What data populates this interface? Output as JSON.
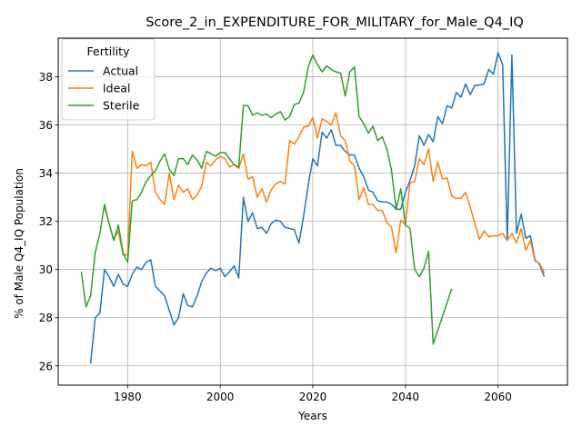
{
  "chart_data": {
    "type": "line",
    "title": "Score_2_in_EXPENDITURE_FOR_MILITARY_for_Male_Q4_IQ",
    "xlabel": "Years",
    "ylabel": "% of Male Q4_IQ Population",
    "xlim": [
      1965,
      2075
    ],
    "ylim": [
      25.2,
      39.6
    ],
    "xticks": [
      1980,
      2000,
      2020,
      2040,
      2060
    ],
    "yticks": [
      26,
      28,
      30,
      32,
      34,
      36,
      38
    ],
    "grid": true,
    "legend": {
      "title": "Fertility",
      "placement": "top-left"
    },
    "series": [
      {
        "name": "Actual",
        "color": "#1f77b4",
        "points": [
          [
            1972,
            26.1
          ],
          [
            1973,
            28.0
          ],
          [
            1974,
            28.2
          ],
          [
            1975,
            30.0
          ],
          [
            1976,
            29.7
          ],
          [
            1977,
            29.3
          ],
          [
            1978,
            29.8
          ],
          [
            1979,
            29.4
          ],
          [
            1980,
            29.3
          ],
          [
            1981,
            29.8
          ],
          [
            1982,
            30.1
          ],
          [
            1983,
            30.0
          ],
          [
            1984,
            30.3
          ],
          [
            1985,
            30.4
          ],
          [
            1986,
            29.3
          ],
          [
            1987,
            29.1
          ],
          [
            1988,
            28.9
          ],
          [
            1989,
            28.3
          ],
          [
            1990,
            27.7
          ],
          [
            1991,
            28.0
          ],
          [
            1992,
            29.0
          ],
          [
            1993,
            28.5
          ],
          [
            1994,
            28.45
          ],
          [
            1995,
            28.9
          ],
          [
            1996,
            29.5
          ],
          [
            1997,
            29.85
          ],
          [
            1998,
            30.05
          ],
          [
            1999,
            29.95
          ],
          [
            2000,
            30.05
          ],
          [
            2001,
            29.7
          ],
          [
            2002,
            29.9
          ],
          [
            2003,
            30.15
          ],
          [
            2004,
            29.65
          ],
          [
            2005,
            33.0
          ],
          [
            2006,
            32.0
          ],
          [
            2007,
            32.35
          ],
          [
            2008,
            31.7
          ],
          [
            2009,
            31.75
          ],
          [
            2010,
            31.5
          ],
          [
            2011,
            31.9
          ],
          [
            2012,
            32.05
          ],
          [
            2013,
            32.0
          ],
          [
            2014,
            31.75
          ],
          [
            2015,
            31.7
          ],
          [
            2016,
            31.65
          ],
          [
            2017,
            31.1
          ],
          [
            2018,
            32.2
          ],
          [
            2019,
            33.5
          ],
          [
            2020,
            34.6
          ],
          [
            2021,
            34.3
          ],
          [
            2022,
            35.7
          ],
          [
            2023,
            35.45
          ],
          [
            2024,
            35.8
          ],
          [
            2025,
            35.15
          ],
          [
            2026,
            35.15
          ],
          [
            2027,
            34.9
          ],
          [
            2028,
            34.75
          ],
          [
            2029,
            34.75
          ],
          [
            2030,
            34.2
          ],
          [
            2031,
            33.85
          ],
          [
            2032,
            33.3
          ],
          [
            2033,
            33.2
          ],
          [
            2034,
            32.85
          ],
          [
            2035,
            32.8
          ],
          [
            2036,
            32.8
          ],
          [
            2037,
            32.7
          ],
          [
            2038,
            32.5
          ],
          [
            2039,
            32.5
          ],
          [
            2040,
            33.2
          ],
          [
            2041,
            33.7
          ],
          [
            2042,
            34.3
          ],
          [
            2043,
            35.55
          ],
          [
            2044,
            35.15
          ],
          [
            2045,
            35.6
          ],
          [
            2046,
            35.3
          ],
          [
            2047,
            36.35
          ],
          [
            2048,
            36.05
          ],
          [
            2049,
            36.8
          ],
          [
            2050,
            36.7
          ],
          [
            2051,
            37.35
          ],
          [
            2052,
            37.15
          ],
          [
            2053,
            37.7
          ],
          [
            2054,
            37.25
          ],
          [
            2055,
            37.65
          ],
          [
            2056,
            37.65
          ],
          [
            2057,
            37.7
          ],
          [
            2058,
            38.3
          ],
          [
            2059,
            38.1
          ],
          [
            2060,
            39.0
          ],
          [
            2061,
            38.5
          ],
          [
            2062,
            31.2
          ],
          [
            2063,
            38.9
          ],
          [
            2064,
            31.5
          ],
          [
            2065,
            32.3
          ],
          [
            2066,
            31.3
          ],
          [
            2067,
            31.4
          ],
          [
            2068,
            30.4
          ],
          [
            2069,
            30.2
          ],
          [
            2070,
            29.7
          ]
        ]
      },
      {
        "name": "Ideal",
        "color": "#ff7f0e",
        "points": [
          [
            1975,
            32.6
          ],
          [
            1976,
            31.9
          ],
          [
            1977,
            31.25
          ],
          [
            1978,
            31.6
          ],
          [
            1979,
            30.6
          ],
          [
            1980,
            30.6
          ],
          [
            1981,
            34.9
          ],
          [
            1982,
            34.2
          ],
          [
            1983,
            34.35
          ],
          [
            1984,
            34.3
          ],
          [
            1985,
            34.45
          ],
          [
            1986,
            33.2
          ],
          [
            1987,
            32.9
          ],
          [
            1988,
            32.7
          ],
          [
            1989,
            34.0
          ],
          [
            1990,
            32.9
          ],
          [
            1991,
            33.5
          ],
          [
            1992,
            33.2
          ],
          [
            1993,
            33.35
          ],
          [
            1994,
            32.9
          ],
          [
            1995,
            33.1
          ],
          [
            1996,
            33.45
          ],
          [
            1997,
            34.45
          ],
          [
            1998,
            34.3
          ],
          [
            1999,
            34.55
          ],
          [
            2000,
            34.7
          ],
          [
            2001,
            34.6
          ],
          [
            2002,
            34.25
          ],
          [
            2003,
            34.35
          ],
          [
            2004,
            34.2
          ],
          [
            2005,
            34.8
          ],
          [
            2006,
            33.75
          ],
          [
            2007,
            33.85
          ],
          [
            2008,
            33.0
          ],
          [
            2009,
            33.35
          ],
          [
            2010,
            32.8
          ],
          [
            2011,
            33.3
          ],
          [
            2012,
            33.55
          ],
          [
            2013,
            33.65
          ],
          [
            2014,
            33.55
          ],
          [
            2015,
            35.35
          ],
          [
            2016,
            35.2
          ],
          [
            2017,
            35.5
          ],
          [
            2018,
            35.9
          ],
          [
            2019,
            35.95
          ],
          [
            2020,
            36.3
          ],
          [
            2021,
            35.45
          ],
          [
            2022,
            36.25
          ],
          [
            2023,
            36.15
          ],
          [
            2024,
            36.0
          ],
          [
            2025,
            36.5
          ],
          [
            2026,
            35.55
          ],
          [
            2027,
            35.35
          ],
          [
            2028,
            34.5
          ],
          [
            2029,
            34.3
          ],
          [
            2030,
            32.9
          ],
          [
            2031,
            33.4
          ],
          [
            2032,
            32.7
          ],
          [
            2033,
            32.7
          ],
          [
            2034,
            32.45
          ],
          [
            2035,
            32.45
          ],
          [
            2036,
            31.95
          ],
          [
            2037,
            31.75
          ],
          [
            2038,
            30.7
          ],
          [
            2039,
            32.05
          ],
          [
            2040,
            31.85
          ],
          [
            2041,
            33.6
          ],
          [
            2042,
            33.65
          ],
          [
            2043,
            34.6
          ],
          [
            2044,
            34.35
          ],
          [
            2045,
            35.0
          ],
          [
            2046,
            33.65
          ],
          [
            2047,
            34.45
          ],
          [
            2048,
            33.75
          ],
          [
            2049,
            33.8
          ],
          [
            2050,
            33.05
          ],
          [
            2051,
            32.95
          ],
          [
            2052,
            32.95
          ],
          [
            2053,
            33.2
          ],
          [
            2054,
            32.6
          ],
          [
            2055,
            31.9
          ],
          [
            2056,
            31.25
          ],
          [
            2057,
            31.6
          ],
          [
            2058,
            31.35
          ],
          [
            2059,
            31.4
          ],
          [
            2060,
            31.4
          ],
          [
            2061,
            31.5
          ],
          [
            2062,
            31.2
          ],
          [
            2063,
            31.5
          ],
          [
            2064,
            31.1
          ],
          [
            2065,
            31.7
          ],
          [
            2066,
            30.8
          ],
          [
            2067,
            31.2
          ],
          [
            2068,
            30.35
          ],
          [
            2069,
            30.25
          ],
          [
            2070,
            29.85
          ]
        ]
      },
      {
        "name": "Sterile",
        "color": "#2ca02c",
        "points": [
          [
            1970,
            29.9
          ],
          [
            1971,
            28.45
          ],
          [
            1972,
            28.9
          ],
          [
            1973,
            30.7
          ],
          [
            1974,
            31.5
          ],
          [
            1975,
            32.7
          ],
          [
            1976,
            31.9
          ],
          [
            1977,
            31.2
          ],
          [
            1978,
            31.85
          ],
          [
            1979,
            30.7
          ],
          [
            1980,
            30.3
          ],
          [
            1981,
            32.85
          ],
          [
            1982,
            32.9
          ],
          [
            1983,
            33.2
          ],
          [
            1984,
            33.65
          ],
          [
            1985,
            33.9
          ],
          [
            1986,
            34.1
          ],
          [
            1987,
            34.5
          ],
          [
            1988,
            34.8
          ],
          [
            1989,
            34.15
          ],
          [
            1990,
            33.9
          ],
          [
            1991,
            34.6
          ],
          [
            1992,
            34.6
          ],
          [
            1993,
            34.35
          ],
          [
            1994,
            34.75
          ],
          [
            1995,
            34.55
          ],
          [
            1996,
            34.2
          ],
          [
            1997,
            34.9
          ],
          [
            1998,
            34.8
          ],
          [
            1999,
            34.7
          ],
          [
            2000,
            34.85
          ],
          [
            2001,
            34.85
          ],
          [
            2002,
            34.6
          ],
          [
            2003,
            34.35
          ],
          [
            2004,
            34.25
          ],
          [
            2005,
            36.8
          ],
          [
            2006,
            36.8
          ],
          [
            2007,
            36.4
          ],
          [
            2008,
            36.5
          ],
          [
            2009,
            36.4
          ],
          [
            2010,
            36.45
          ],
          [
            2011,
            36.3
          ],
          [
            2012,
            36.45
          ],
          [
            2013,
            36.55
          ],
          [
            2014,
            36.2
          ],
          [
            2015,
            36.35
          ],
          [
            2016,
            36.85
          ],
          [
            2017,
            36.9
          ],
          [
            2018,
            37.35
          ],
          [
            2019,
            38.4
          ],
          [
            2020,
            38.9
          ],
          [
            2021,
            38.5
          ],
          [
            2022,
            38.2
          ],
          [
            2023,
            38.45
          ],
          [
            2024,
            38.3
          ],
          [
            2025,
            38.2
          ],
          [
            2026,
            38.15
          ],
          [
            2027,
            37.2
          ],
          [
            2028,
            38.2
          ],
          [
            2029,
            38.4
          ],
          [
            2030,
            36.35
          ],
          [
            2031,
            36.05
          ],
          [
            2032,
            35.65
          ],
          [
            2033,
            35.95
          ],
          [
            2034,
            35.35
          ],
          [
            2035,
            35.5
          ],
          [
            2036,
            35.0
          ],
          [
            2037,
            34.1
          ],
          [
            2038,
            32.5
          ],
          [
            2039,
            33.35
          ],
          [
            2040,
            31.85
          ],
          [
            2041,
            31.7
          ],
          [
            2042,
            30.0
          ],
          [
            2043,
            29.7
          ],
          [
            2044,
            30.05
          ],
          [
            2045,
            30.75
          ],
          [
            2046,
            26.9
          ],
          [
            2050,
            29.2
          ]
        ]
      }
    ]
  }
}
